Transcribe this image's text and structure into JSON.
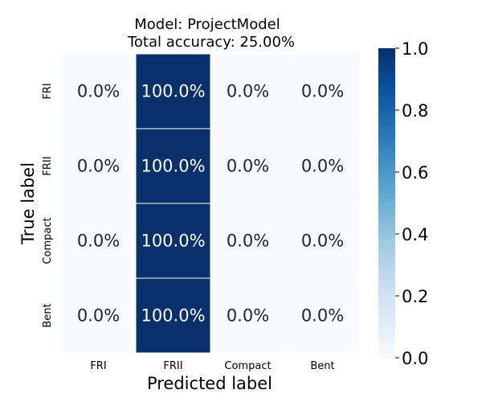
{
  "chart_data": {
    "type": "heatmap",
    "title_lines": [
      "Model: ProjectModel",
      "Total accuracy: 25.00%"
    ],
    "xlabel": "Predicted label",
    "ylabel": "True label",
    "x_categories": [
      "FRI",
      "FRII",
      "Compact",
      "Bent"
    ],
    "y_categories": [
      "FRI",
      "FRII",
      "Compact",
      "Bent"
    ],
    "values": [
      [
        0.0,
        1.0,
        0.0,
        0.0
      ],
      [
        0.0,
        1.0,
        0.0,
        0.0
      ],
      [
        0.0,
        1.0,
        0.0,
        0.0
      ],
      [
        0.0,
        1.0,
        0.0,
        0.0
      ]
    ],
    "cell_labels": [
      [
        "0.0%",
        "100.0%",
        "0.0%",
        "0.0%"
      ],
      [
        "0.0%",
        "100.0%",
        "0.0%",
        "0.0%"
      ],
      [
        "0.0%",
        "100.0%",
        "0.0%",
        "0.0%"
      ],
      [
        "0.0%",
        "100.0%",
        "0.0%",
        "0.0%"
      ]
    ],
    "colorbar": {
      "range": [
        0.0,
        1.0
      ],
      "ticks": [
        0.0,
        0.2,
        0.4,
        0.6,
        0.8,
        1.0
      ],
      "tick_labels": [
        "0.0",
        "0.2",
        "0.4",
        "0.6",
        "0.8",
        "1.0"
      ],
      "colormap": "Blues"
    },
    "colors": {
      "low": "#f7fbff",
      "high": "#08306b",
      "text_on_low": "#262626",
      "text_on_high": "#ffffff"
    }
  }
}
